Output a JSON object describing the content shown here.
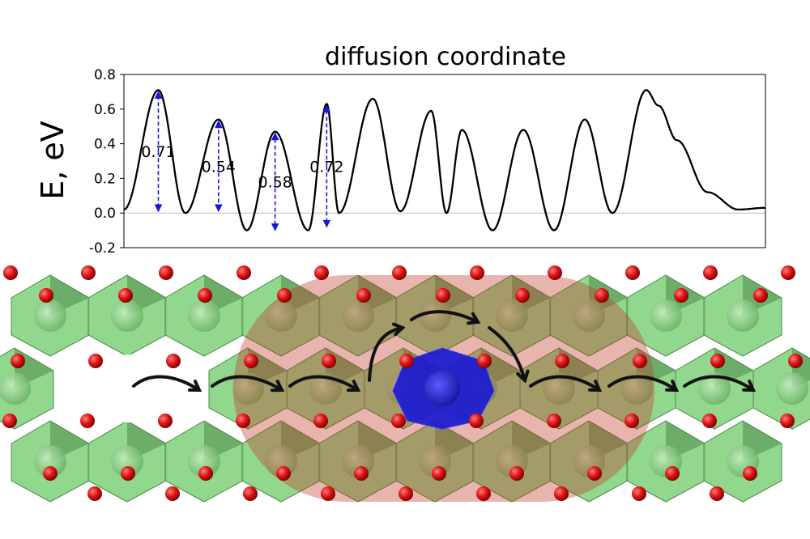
{
  "chart_data": {
    "type": "line",
    "title": "diffusion coordinate",
    "xlabel": "",
    "ylabel": "E, eV",
    "ylim": [
      -0.2,
      0.8
    ],
    "yticks": [
      "0.8",
      "0.6",
      "0.4",
      "0.2",
      "0.0",
      "-0.2"
    ],
    "ytick_values": [
      0.8,
      0.6,
      0.4,
      0.2,
      0.0,
      -0.2
    ],
    "grid": false,
    "baseline": 0.0,
    "series": [
      {
        "color": "#000000",
        "x": [
          0,
          0.56,
          1.0,
          1.54,
          2.0,
          2.46,
          3.0,
          3.3,
          3.5,
          4.05,
          4.5,
          5.0,
          5.25,
          5.5,
          6.0,
          6.5,
          7.0,
          7.5,
          7.95,
          8.5,
          8.7,
          9.0,
          9.5,
          10.0,
          10.44
        ],
        "y": [
          0.02,
          0.71,
          0.0,
          0.54,
          -0.1,
          0.47,
          -0.1,
          0.63,
          0.0,
          0.66,
          0.01,
          0.59,
          0.0,
          0.48,
          -0.1,
          0.48,
          -0.1,
          0.54,
          0.0,
          0.71,
          0.62,
          0.42,
          0.12,
          0.02,
          0.03
        ]
      }
    ],
    "barriers": [
      {
        "x": 0.56,
        "top": 0.71,
        "bottom": 0.0,
        "label": "0.71"
      },
      {
        "x": 1.54,
        "top": 0.54,
        "bottom": 0.0,
        "label": "0.54"
      },
      {
        "x": 2.46,
        "top": 0.47,
        "bottom": -0.11,
        "label": "0.58"
      },
      {
        "x": 3.3,
        "top": 0.63,
        "bottom": -0.09,
        "label": "0.72"
      }
    ]
  },
  "structure": {
    "octahedron_color": "#7ed07a",
    "highlight_color": "#c0392b",
    "dopant_color": "#1a1ad0",
    "oxygen_color": "#dd1111",
    "arrow_color": "#111111",
    "arrow_count": 8
  }
}
